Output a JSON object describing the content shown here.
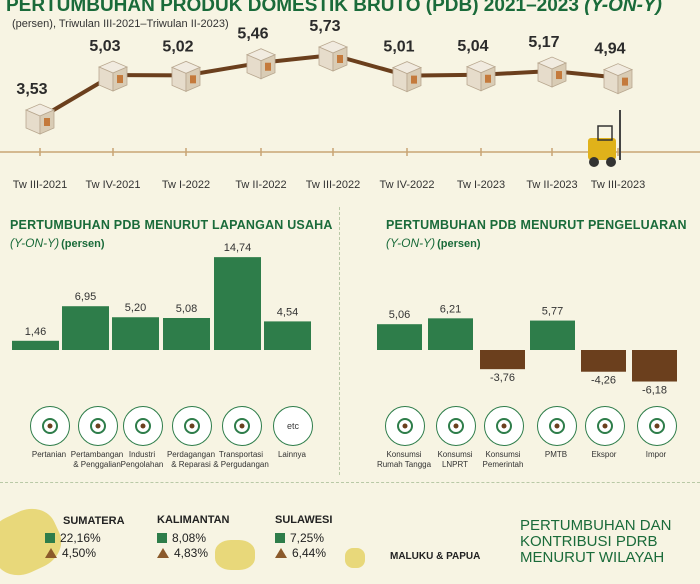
{
  "header": {
    "title": "PERTUMBUHAN PRODUK DOMESTIK BRUTO (PDB) 2021–2023",
    "title_suffix": "(Y-ON-Y)",
    "subtitle": "(persen), Triwulan III-2021–Triwulan II-2023)"
  },
  "colors": {
    "green": "#2e7d4a",
    "brown": "#6b3f1d",
    "line": "#6b3f1d"
  },
  "chart_data": [
    {
      "type": "line",
      "title": "PERTUMBUHAN PRODUK DOMESTIK BRUTO (PDB) 2021–2023 (Y-ON-Y)",
      "categories": [
        "Tw III-2021",
        "Tw IV-2021",
        "Tw I-2022",
        "Tw II-2022",
        "Tw III-2022",
        "Tw IV-2022",
        "Tw I-2023",
        "Tw II-2023",
        "Tw III-2023"
      ],
      "values": [
        3.53,
        5.03,
        5.02,
        5.46,
        5.73,
        5.01,
        5.04,
        5.17,
        4.94
      ],
      "value_labels": [
        "3,53",
        "5,03",
        "5,02",
        "5,46",
        "5,73",
        "5,01",
        "5,04",
        "5,17",
        "4,94"
      ]
    },
    {
      "type": "bar",
      "title": "PERTUMBUHAN PDB MENURUT LAPANGAN USAHA",
      "subtitle": "(Y-ON-Y)",
      "unit": "(persen)",
      "categories": [
        "Pertanian",
        "Pertambangan & Penggalian",
        "Industri Pengolahan",
        "Perdagangan & Reparasi",
        "Transportasi & Pergudangan",
        "Lainnya"
      ],
      "values": [
        1.46,
        6.95,
        5.2,
        5.08,
        14.74,
        4.54
      ],
      "value_labels": [
        "1,46",
        "6,95",
        "5,20",
        "5,08",
        "14,74",
        "4,54"
      ]
    },
    {
      "type": "bar",
      "title": "PERTUMBUHAN PDB MENURUT PENGELUARAN",
      "subtitle": "(Y-ON-Y)",
      "unit": "(persen)",
      "categories": [
        "Konsumsi Rumah Tangga",
        "Konsumsi LNPRT",
        "Konsumsi Pemerintah",
        "PMTB",
        "Ekspor",
        "Impor"
      ],
      "values": [
        5.06,
        6.21,
        -3.76,
        5.77,
        -4.26,
        -6.18
      ],
      "value_labels": [
        "5,06",
        "6,21",
        "-3,76",
        "5,77",
        "-4,26",
        "-6,18"
      ]
    }
  ],
  "lapangan": {
    "title": "PERTUMBUHAN PDB MENURUT LAPANGAN USAHA",
    "yoy": "(Y-ON-Y)",
    "unit": "(persen)",
    "icons": [
      {
        "name": "leaf-icon",
        "label1": "Pertanian",
        "label2": ""
      },
      {
        "name": "oil-pump-icon",
        "label1": "Pertambangan",
        "label2": "& Penggalian"
      },
      {
        "name": "factory-icon",
        "label1": "Industri",
        "label2": "Pengolahan"
      },
      {
        "name": "handshake-icon",
        "label1": "Perdagangan",
        "label2": "& Reparasi"
      },
      {
        "name": "truck-warehouse-icon",
        "label1": "Transportasi",
        "label2": "& Pergudangan"
      },
      {
        "name": "etc-icon",
        "label1": "Lainnya",
        "label2": ""
      }
    ],
    "etc_text": "etc"
  },
  "pengeluaran": {
    "title": "PERTUMBUHAN PDB MENURUT PENGELUARAN",
    "yoy": "(Y-ON-Y)",
    "unit": "(persen)",
    "icons": [
      {
        "name": "shopping-bag-icon",
        "label1": "Konsumsi",
        "label2": "Rumah Tangga"
      },
      {
        "name": "person-icon",
        "label1": "Konsumsi",
        "label2": "LNPRT"
      },
      {
        "name": "government-building-icon",
        "label1": "Konsumsi",
        "label2": "Pemerintah"
      },
      {
        "name": "robot-arm-icon",
        "label1": "PMTB",
        "label2": ""
      },
      {
        "name": "cargo-ship-icon",
        "label1": "Ekspor",
        "label2": ""
      },
      {
        "name": "cargo-ship-icon",
        "label1": "Impor",
        "label2": ""
      }
    ]
  },
  "regions": [
    {
      "name": "SUMATERA",
      "share": "22,16%",
      "growth": "4,50%"
    },
    {
      "name": "KALIMANTAN",
      "share": "8,08%",
      "growth": "4,83%"
    },
    {
      "name": "SULAWESI",
      "share": "7,25%",
      "growth": "6,44%"
    },
    {
      "name": "MALUKU & PAPUA",
      "share": "",
      "growth": ""
    }
  ],
  "wilayah": {
    "line1": "PERTUMBUHAN DAN",
    "line2": "KONTRIBUSI PDRB",
    "line3": "MENURUT WILAYAH"
  }
}
